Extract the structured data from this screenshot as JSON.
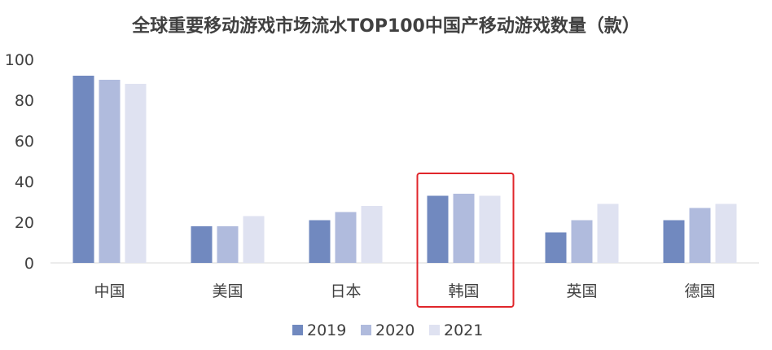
{
  "chart_data": {
    "type": "bar",
    "title": "全球重要移动游戏市场流水TOP100中国产移动游戏数量（款）",
    "categories": [
      "中国",
      "美国",
      "日本",
      "韩国",
      "英国",
      "德国"
    ],
    "series": [
      {
        "name": "2019",
        "values": [
          92,
          18,
          21,
          33,
          15,
          21
        ],
        "color": "#7189bf"
      },
      {
        "name": "2020",
        "values": [
          90,
          18,
          25,
          34,
          21,
          27
        ],
        "color": "#b0bbdd"
      },
      {
        "name": "2021",
        "values": [
          88,
          23,
          28,
          33,
          29,
          29
        ],
        "color": "#dfe2f1"
      }
    ],
    "ylim": [
      0,
      100
    ],
    "yticks": [
      "0",
      "20",
      "40",
      "60",
      "80",
      "100"
    ],
    "xlabel": "",
    "ylabel": "",
    "grid": false,
    "legend_position": "bottom",
    "highlight": {
      "category": "韩国",
      "color": "#e0262b"
    }
  }
}
